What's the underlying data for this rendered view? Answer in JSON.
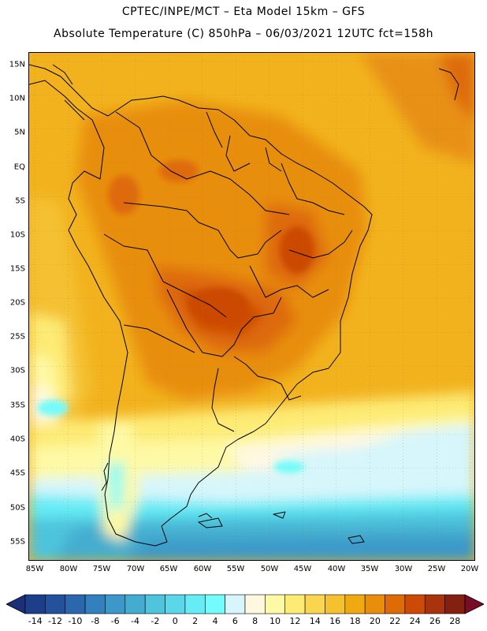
{
  "header": {
    "line1": "CPTEC/INPE/MCT –  Eta Model 15km – GFS",
    "line2": "Absolute Temperature (C) 850hPa – 06/03/2021 12UTC fct=158h"
  },
  "map": {
    "lat_labels": [
      "15N",
      "10N",
      "5N",
      "EQ",
      "5S",
      "10S",
      "15S",
      "20S",
      "25S",
      "30S",
      "35S",
      "40S",
      "45S",
      "50S",
      "55S"
    ],
    "lon_labels": [
      "85W",
      "80W",
      "75W",
      "70W",
      "65W",
      "60W",
      "55W",
      "50W",
      "45W",
      "40W",
      "35W",
      "30W",
      "25W",
      "20W"
    ]
  },
  "colorbar": {
    "labels": [
      "-14",
      "-12",
      "-10",
      "-8",
      "-6",
      "-4",
      "-2",
      "0",
      "2",
      "4",
      "6",
      "8",
      "10",
      "12",
      "14",
      "16",
      "18",
      "20",
      "22",
      "24",
      "26",
      "28"
    ],
    "colors": [
      "#1d3f8a",
      "#23519c",
      "#2a67ad",
      "#3280bd",
      "#3b98c9",
      "#44adcf",
      "#4ec4dd",
      "#5ad7e8",
      "#66ecf5",
      "#74fbfb",
      "#d6f6fb",
      "#fff8e1",
      "#fef9a5",
      "#fdeb74",
      "#f9d64f",
      "#f4c130",
      "#eeaa10",
      "#e88e0c",
      "#de6a08",
      "#cc4a06",
      "#a9330c",
      "#84200f"
    ],
    "min_color": "#1c2f78",
    "max_color": "#7a0d26"
  }
}
